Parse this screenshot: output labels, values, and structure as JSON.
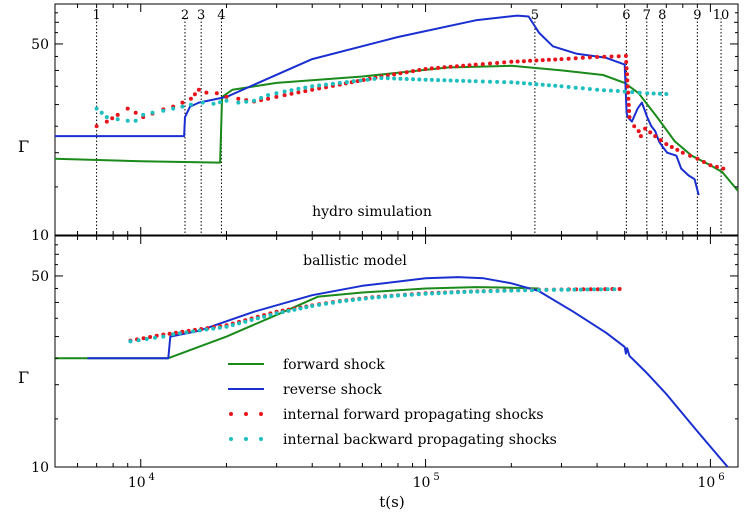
{
  "chart_data": [
    {
      "type": "line",
      "panel": "top",
      "annotation": "hydro simulation",
      "ylabel": "Γ",
      "xscale": "log",
      "yscale": "log",
      "xlim": [
        5000,
        1250000
      ],
      "ylim": [
        10,
        70
      ],
      "yticks": [
        {
          "value": 10,
          "label": "10"
        },
        {
          "value": 50,
          "label": "50"
        }
      ],
      "vlines": [
        {
          "x": 7000,
          "label": "1"
        },
        {
          "x": 14300,
          "label": "2"
        },
        {
          "x": 16300,
          "label": "3"
        },
        {
          "x": 19200,
          "label": "4"
        },
        {
          "x": 242000,
          "label": "5"
        },
        {
          "x": 507000,
          "label": "6"
        },
        {
          "x": 598000,
          "label": "7"
        },
        {
          "x": 678000,
          "label": "8"
        },
        {
          "x": 900000,
          "label": "9"
        },
        {
          "x": 1090000,
          "label": "10"
        }
      ],
      "series": [
        {
          "name": "forward shock",
          "style": "line",
          "color": "#1a8a1a",
          "points": [
            [
              5000,
              19
            ],
            [
              10000,
              18.6
            ],
            [
              19000,
              18.4
            ],
            [
              19300,
              32
            ],
            [
              21000,
              34
            ],
            [
              30000,
              36
            ],
            [
              60000,
              38
            ],
            [
              120000,
              41
            ],
            [
              200000,
              41.6
            ],
            [
              300000,
              40
            ],
            [
              420000,
              38.5
            ],
            [
              500000,
              36
            ],
            [
              560000,
              33
            ],
            [
              650000,
              27
            ],
            [
              750000,
              22
            ],
            [
              860000,
              19.5
            ],
            [
              1000000,
              18
            ],
            [
              1100000,
              17
            ],
            [
              1250000,
              14.5
            ]
          ]
        },
        {
          "name": "reverse shock",
          "style": "line",
          "color": "#1a2fd0",
          "points": [
            [
              5000,
              23
            ],
            [
              14200,
              23
            ],
            [
              14300,
              27
            ],
            [
              14900,
              29.5
            ],
            [
              16000,
              30.5
            ],
            [
              20000,
              32
            ],
            [
              40000,
              44
            ],
            [
              80000,
              53
            ],
            [
              150000,
              61
            ],
            [
              210000,
              63.5
            ],
            [
              230000,
              63
            ],
            [
              250000,
              55
            ],
            [
              280000,
              49
            ],
            [
              340000,
              46
            ],
            [
              430000,
              44.5
            ],
            [
              500000,
              42
            ],
            [
              508000,
              28
            ],
            [
              512000,
              27
            ],
            [
              530000,
              26
            ],
            [
              555000,
              29
            ],
            [
              575000,
              30.5
            ],
            [
              600000,
              27
            ],
            [
              620000,
              25
            ],
            [
              640000,
              24
            ],
            [
              660000,
              22
            ],
            [
              680000,
              21
            ],
            [
              705000,
              20
            ],
            [
              760000,
              19.5
            ],
            [
              790000,
              17.5
            ],
            [
              840000,
              16.5
            ],
            [
              880000,
              16
            ],
            [
              910000,
              14
            ]
          ]
        },
        {
          "name": "internal forward propagating shocks",
          "style": "dots",
          "color": "#e8141b",
          "points": [
            [
              7000,
              25
            ],
            [
              7600,
              26
            ],
            [
              8300,
              27.5
            ],
            [
              9000,
              29
            ],
            [
              9600,
              28
            ],
            [
              10200,
              27
            ],
            [
              11000,
              27.8
            ],
            [
              12000,
              28.8
            ],
            [
              13000,
              29.5
            ],
            [
              14000,
              30.5
            ],
            [
              15000,
              31.5
            ],
            [
              16000,
              34
            ],
            [
              17000,
              33.2
            ],
            [
              18500,
              33
            ],
            [
              20000,
              32
            ],
            [
              22000,
              31.5
            ],
            [
              25000,
              30.8
            ],
            [
              28000,
              31.5
            ],
            [
              32000,
              32.5
            ],
            [
              40000,
              34
            ],
            [
              50000,
              35.5
            ],
            [
              70000,
              38
            ],
            [
              100000,
              40.5
            ],
            [
              150000,
              42
            ],
            [
              200000,
              43
            ],
            [
              300000,
              44
            ],
            [
              400000,
              44.8
            ],
            [
              505000,
              45.2
            ],
            [
              520000,
              27
            ],
            [
              540000,
              25
            ],
            [
              560000,
              24
            ],
            [
              570000,
              23
            ],
            [
              590000,
              24.5
            ],
            [
              640000,
              23
            ],
            [
              700000,
              21.5
            ],
            [
              800000,
              20
            ],
            [
              900000,
              19
            ],
            [
              1000000,
              18
            ],
            [
              1110000,
              17.5
            ]
          ]
        },
        {
          "name": "internal backward propagating shocks",
          "style": "dots",
          "color": "#1fbfbf",
          "points": [
            [
              7000,
              29
            ],
            [
              7600,
              27
            ],
            [
              8300,
              26.5
            ],
            [
              9000,
              26.2
            ],
            [
              9600,
              26.2
            ],
            [
              10200,
              27.5
            ],
            [
              11000,
              28
            ],
            [
              12000,
              28.5
            ],
            [
              13000,
              29
            ],
            [
              14000,
              29.5
            ],
            [
              15000,
              30
            ],
            [
              16500,
              30.5
            ],
            [
              18000,
              30.2
            ],
            [
              20000,
              31
            ],
            [
              22000,
              30.5
            ],
            [
              25000,
              31
            ],
            [
              28000,
              32.5
            ],
            [
              32000,
              33.5
            ],
            [
              40000,
              35
            ],
            [
              50000,
              36
            ],
            [
              70000,
              37.5
            ],
            [
              100000,
              37
            ],
            [
              150000,
              36.5
            ],
            [
              200000,
              36.2
            ],
            [
              300000,
              35
            ],
            [
              400000,
              34
            ],
            [
              500000,
              33.5
            ],
            [
              600000,
              33
            ],
            [
              700000,
              32.8
            ]
          ]
        }
      ]
    },
    {
      "type": "line",
      "panel": "bottom",
      "annotation": "ballistic model",
      "ylabel": "Γ",
      "xlabel": "t(s)",
      "xscale": "log",
      "yscale": "log",
      "xlim": [
        5000,
        1250000
      ],
      "ylim": [
        10,
        70
      ],
      "xticks": [
        {
          "value": 10000,
          "base": "10",
          "exp": "4"
        },
        {
          "value": 100000,
          "base": "10",
          "exp": "5"
        },
        {
          "value": 1000000,
          "base": "10",
          "exp": "6"
        }
      ],
      "yticks": [
        {
          "value": 10,
          "label": "10"
        },
        {
          "value": 50,
          "label": "50"
        }
      ],
      "series": [
        {
          "name": "forward shock",
          "style": "line",
          "color": "#1a8a1a",
          "points": [
            [
              5000,
              25
            ],
            [
              6000,
              25
            ],
            [
              12500,
              25
            ],
            [
              20000,
              30
            ],
            [
              30000,
              36
            ],
            [
              42000,
              42
            ],
            [
              60000,
              43.5
            ],
            [
              100000,
              45
            ],
            [
              150000,
              45.5
            ],
            [
              200000,
              45.3
            ],
            [
              250000,
              45
            ]
          ]
        },
        {
          "name": "reverse shock",
          "style": "line",
          "color": "#1a2fd0",
          "points": [
            [
              6500,
              25
            ],
            [
              12500,
              25
            ],
            [
              12700,
              30
            ],
            [
              16000,
              31.5
            ],
            [
              25000,
              37
            ],
            [
              40000,
              42.5
            ],
            [
              60000,
              46
            ],
            [
              100000,
              49
            ],
            [
              130000,
              49.5
            ],
            [
              160000,
              49
            ],
            [
              200000,
              47
            ],
            [
              250000,
              44
            ],
            [
              330000,
              37
            ],
            [
              430000,
              31
            ],
            [
              500000,
              27.5
            ],
            [
              505000,
              26
            ],
            [
              510000,
              27.2
            ],
            [
              520000,
              25.5
            ],
            [
              600000,
              22
            ],
            [
              700000,
              18.5
            ],
            [
              900000,
              13.5
            ],
            [
              1150000,
              10
            ]
          ]
        },
        {
          "name": "internal forward propagating shocks",
          "style": "dots",
          "color": "#e8141b",
          "points": [
            [
              9200,
              29
            ],
            [
              12000,
              30.5
            ],
            [
              20000,
              33
            ],
            [
              30000,
              37
            ],
            [
              40000,
              39
            ],
            [
              50000,
              40.5
            ],
            [
              65000,
              41.8
            ],
            [
              80000,
              42.5
            ],
            [
              100000,
              43.2
            ],
            [
              130000,
              43.7
            ],
            [
              160000,
              44
            ],
            [
              200000,
              44.3
            ],
            [
              250000,
              44.5
            ],
            [
              300000,
              44.6
            ],
            [
              380000,
              44.7
            ],
            [
              480000,
              44.8
            ]
          ]
        },
        {
          "name": "internal backward propagating shocks",
          "style": "dots",
          "color": "#1fbfbf",
          "points": [
            [
              9200,
              28.8
            ],
            [
              10500,
              29.4
            ],
            [
              12000,
              30
            ],
            [
              13000,
              30.6
            ],
            [
              20000,
              32.6
            ],
            [
              30000,
              36.5
            ],
            [
              40000,
              38.8
            ],
            [
              50000,
              40.3
            ],
            [
              65000,
              41.6
            ],
            [
              80000,
              42.4
            ],
            [
              100000,
              43
            ],
            [
              130000,
              43.6
            ],
            [
              160000,
              43.9
            ],
            [
              200000,
              44.2
            ],
            [
              250000,
              44.4
            ],
            [
              300000,
              44.5
            ],
            [
              370000,
              44.6
            ],
            [
              460000,
              44.7
            ]
          ]
        }
      ],
      "legend": {
        "placement": "center",
        "entries": [
          {
            "label": "forward shock",
            "style": "line",
            "color": "#1a8a1a"
          },
          {
            "label": "reverse shock",
            "style": "line",
            "color": "#1a2fd0"
          },
          {
            "label": "internal forward propagating shocks",
            "style": "dots",
            "color": "#e8141b"
          },
          {
            "label": "internal backward propagating shocks",
            "style": "dots",
            "color": "#1fbfbf"
          }
        ]
      }
    }
  ]
}
